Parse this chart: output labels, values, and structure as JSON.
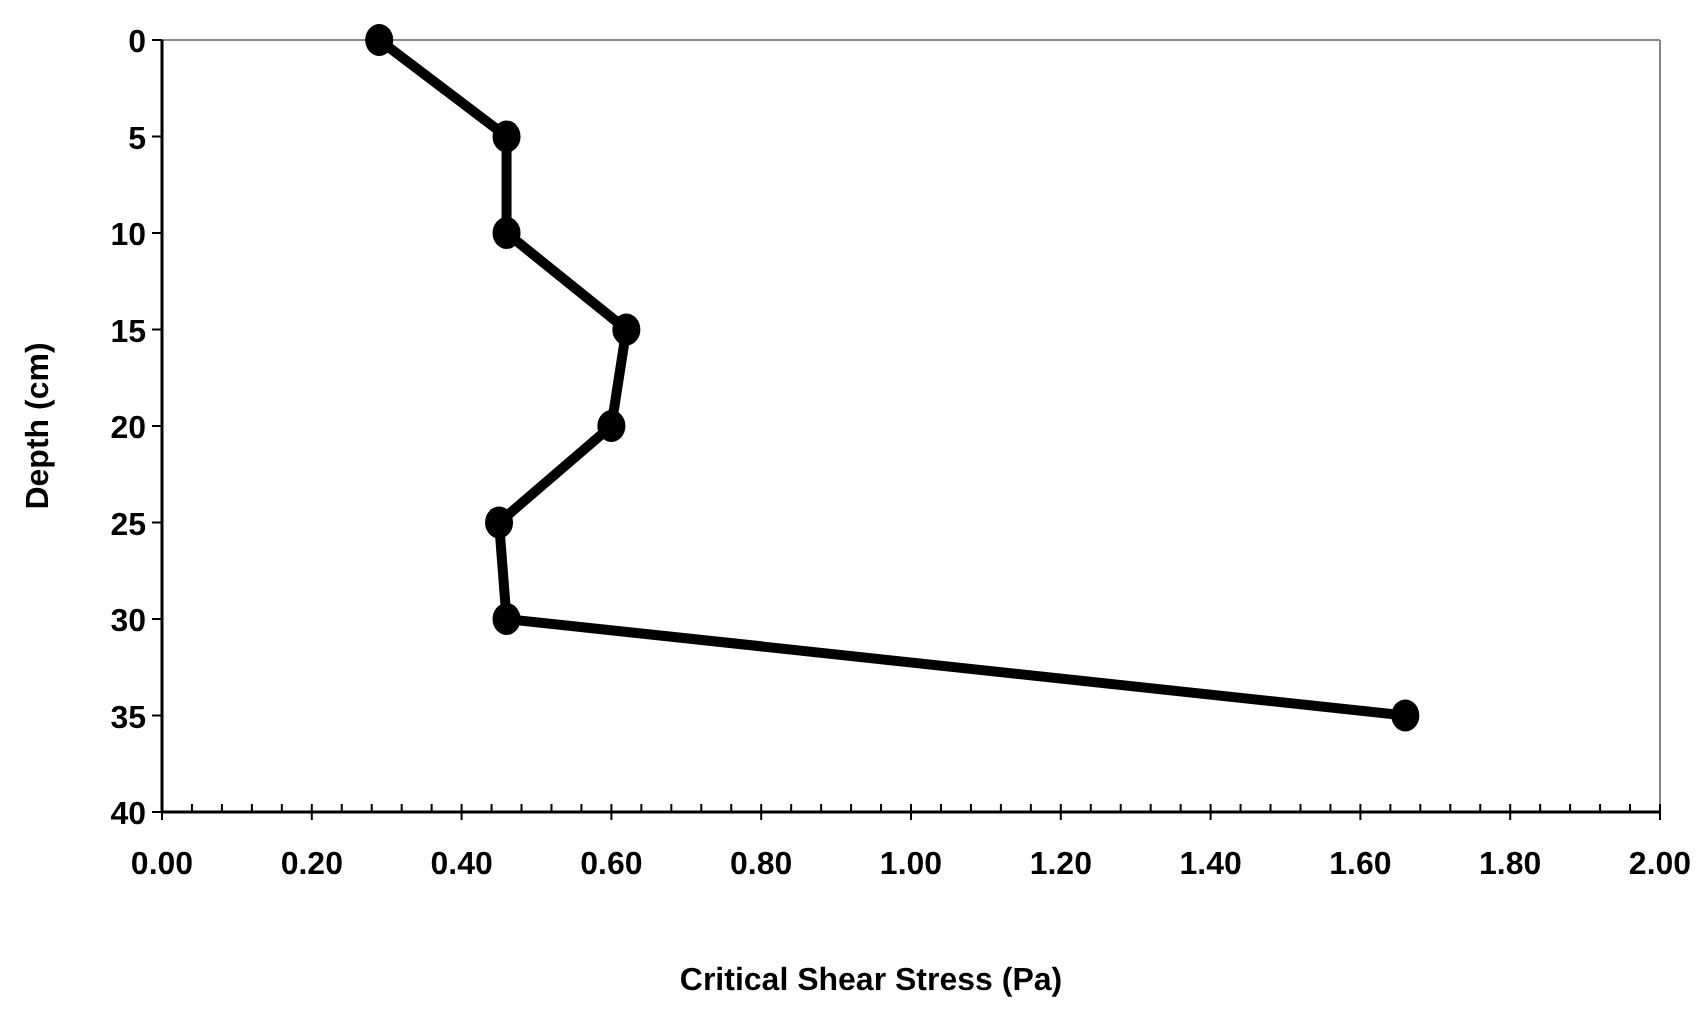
{
  "chart_data": {
    "type": "line",
    "xlabel": "Critical Shear Stress (Pa)",
    "ylabel": "Depth (cm)",
    "series": [
      {
        "color": "#000000",
        "x": [
          0.29,
          0.46,
          0.46,
          0.62,
          0.6,
          0.45,
          0.46,
          1.66
        ],
        "values": [
          0,
          5,
          10,
          15,
          20,
          25,
          30,
          35
        ]
      }
    ],
    "xlim": [
      0,
      2
    ],
    "xticks": [
      {
        "value": 0,
        "label": "0.00"
      },
      {
        "value": 0.2,
        "label": "0.20"
      },
      {
        "value": 0.4,
        "label": "0.40"
      },
      {
        "value": 0.6,
        "label": "0.60"
      },
      {
        "value": 0.8,
        "label": "0.80"
      },
      {
        "value": 1,
        "label": "1.00"
      },
      {
        "value": 1.2,
        "label": "1.20"
      },
      {
        "value": 1.4,
        "label": "1.40"
      },
      {
        "value": 1.6,
        "label": "1.60"
      },
      {
        "value": 1.8,
        "label": "1.80"
      },
      {
        "value": 2,
        "label": "2.00"
      }
    ],
    "ylim": [
      40,
      0
    ],
    "yticks": [
      0,
      5,
      10,
      15,
      20,
      25,
      30,
      35,
      40
    ],
    "marker": "circle"
  }
}
